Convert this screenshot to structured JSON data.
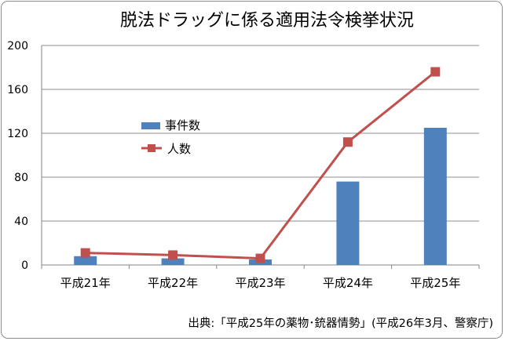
{
  "chart_data": {
    "type": "bar",
    "title": "脱法ドラッグに係る適用法令検挙状況",
    "categories": [
      "平成21年",
      "平成22年",
      "平成23年",
      "平成24年",
      "平成25年"
    ],
    "ylim": [
      0,
      200
    ],
    "yticks": [
      "0",
      "40",
      "80",
      "120",
      "160",
      "200"
    ],
    "grid": true,
    "legend_position": "center-left",
    "series": [
      {
        "name": "事件数",
        "type": "bar",
        "color": "#4f81bd",
        "values": [
          8,
          6,
          5,
          76,
          125
        ]
      },
      {
        "name": "人数",
        "type": "line",
        "marker": "square",
        "color": "#c0504d",
        "values": [
          11,
          9,
          6,
          112,
          176
        ]
      }
    ],
    "source": "出典:「平成25年の薬物･銃器情勢」(平成26年3月、警察庁)"
  }
}
